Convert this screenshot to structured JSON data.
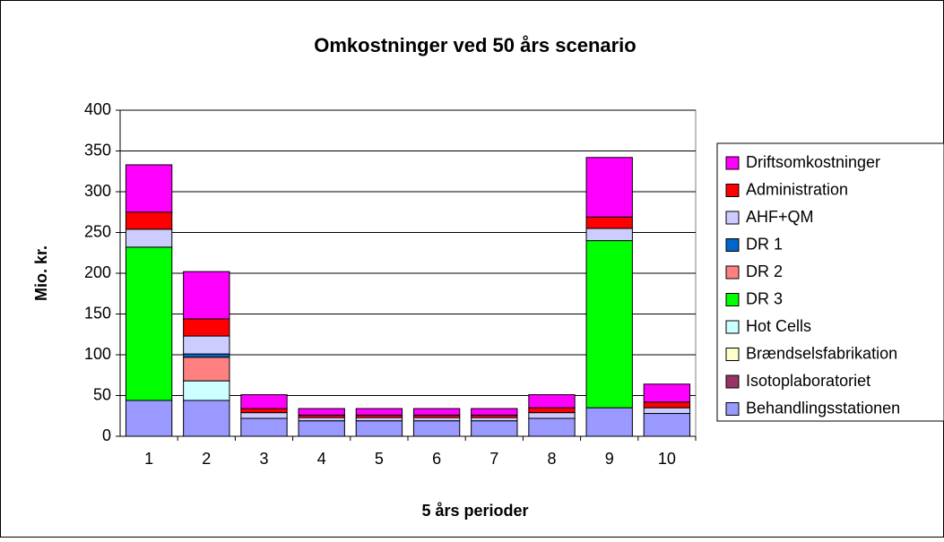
{
  "chart_data": {
    "type": "stacked_bar",
    "title": "Omkostninger ved 50 års scenario",
    "x_label": "5 års perioder",
    "y_label": "Mio. kr.",
    "categories": [
      "1",
      "2",
      "3",
      "4",
      "5",
      "6",
      "7",
      "8",
      "9",
      "10"
    ],
    "series": [
      {
        "name": "Behandlingsstationen",
        "color": "#9999ff",
        "values": [
          44,
          44,
          22,
          19,
          19,
          19,
          19,
          22,
          35,
          28
        ]
      },
      {
        "name": "Isotoplaboratoriet",
        "color": "#993366",
        "values": [
          0,
          0,
          0,
          0,
          0,
          0,
          0,
          0,
          0,
          0
        ]
      },
      {
        "name": "Brændselsfabrikation",
        "color": "#ffffcc",
        "values": [
          0,
          0,
          0,
          0,
          0,
          0,
          0,
          0,
          0,
          0
        ]
      },
      {
        "name": "Hot Cells",
        "color": "#ccffff",
        "values": [
          0,
          24,
          0,
          0,
          0,
          0,
          0,
          0,
          0,
          0
        ]
      },
      {
        "name": "DR 3",
        "color": "#00ff00",
        "values": [
          188,
          0,
          0,
          0,
          0,
          0,
          0,
          0,
          205,
          0
        ]
      },
      {
        "name": "DR 2",
        "color": "#ff8080",
        "values": [
          0,
          29,
          0,
          0,
          0,
          0,
          0,
          0,
          0,
          0
        ]
      },
      {
        "name": "DR 1",
        "color": "#0066cc",
        "values": [
          0,
          4,
          0,
          0,
          0,
          0,
          0,
          0,
          0,
          0
        ]
      },
      {
        "name": "AHF+QM",
        "color": "#ccccff",
        "values": [
          22,
          22,
          7,
          4,
          4,
          4,
          4,
          7,
          15,
          7
        ]
      },
      {
        "name": "Administration",
        "color": "#ff0000",
        "values": [
          21,
          21,
          5,
          3,
          3,
          3,
          3,
          6,
          14,
          7
        ]
      },
      {
        "name": "Driftsomkostninger",
        "color": "#ff00ff",
        "values": [
          58,
          58,
          17,
          8,
          8,
          8,
          8,
          16,
          73,
          22
        ]
      }
    ],
    "ylim": [
      0,
      400
    ],
    "yticks": [
      0,
      50,
      100,
      150,
      200,
      250,
      300,
      350,
      400
    ],
    "grid": true
  }
}
